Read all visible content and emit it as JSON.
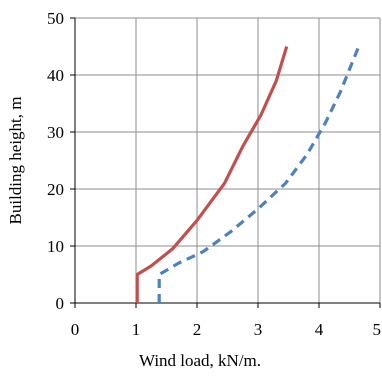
{
  "chart_data": {
    "type": "line",
    "xlabel": "Wind load, kN/m.",
    "ylabel": "Building height, m",
    "xlim": [
      0,
      5
    ],
    "ylim": [
      0,
      50
    ],
    "x_ticks": [
      "0",
      "1",
      "2",
      "3",
      "4",
      "5"
    ],
    "y_ticks": [
      "0",
      "10",
      "20",
      "30",
      "40",
      "50"
    ],
    "grid": true,
    "series": [
      {
        "color": "#C0504D",
        "style": "solid",
        "points": [
          [
            1.02,
            0
          ],
          [
            1.02,
            5
          ],
          [
            1.25,
            6.5
          ],
          [
            1.6,
            9.5
          ],
          [
            2.0,
            14.5
          ],
          [
            2.45,
            21
          ],
          [
            2.75,
            27.5
          ],
          [
            3.05,
            33
          ],
          [
            3.3,
            39
          ],
          [
            3.47,
            45
          ]
        ]
      },
      {
        "color": "#4F81BD",
        "style": "dashed",
        "points": [
          [
            1.38,
            0
          ],
          [
            1.38,
            5
          ],
          [
            1.7,
            7
          ],
          [
            2.1,
            9
          ],
          [
            2.55,
            12.5
          ],
          [
            3.0,
            16.5
          ],
          [
            3.45,
            21
          ],
          [
            3.8,
            26
          ],
          [
            4.1,
            31.5
          ],
          [
            4.35,
            37
          ],
          [
            4.65,
            45
          ]
        ]
      }
    ]
  }
}
